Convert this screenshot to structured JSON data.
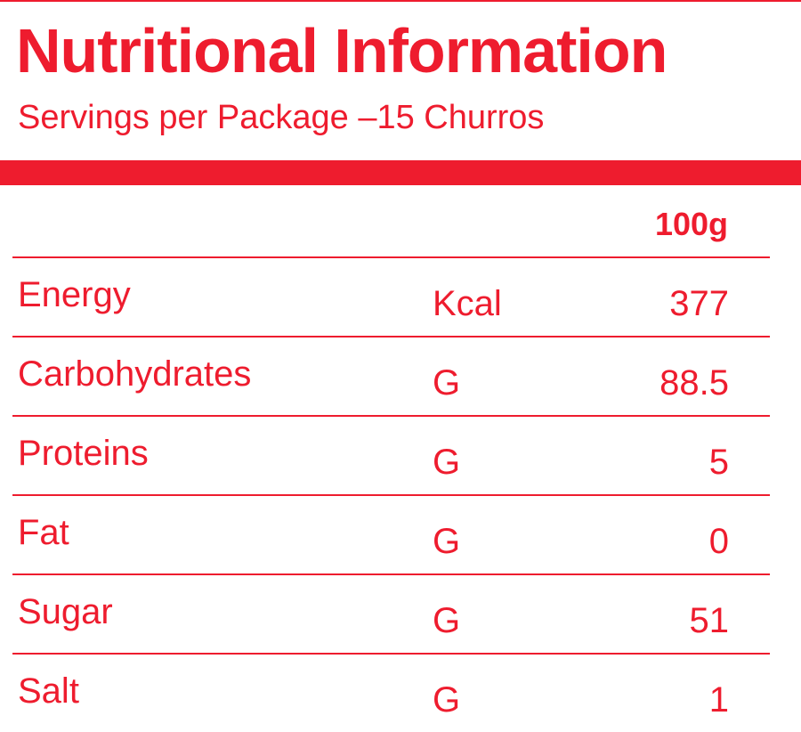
{
  "colors": {
    "accent": "#ee1c2e"
  },
  "header": {
    "title": "Nutritional Information",
    "subtitle": "Servings per Package –15 Churros"
  },
  "table": {
    "column_header": "100g",
    "rows": [
      {
        "name": "Energy",
        "unit": "Kcal",
        "value": "377"
      },
      {
        "name": "Carbohydrates",
        "unit": "G",
        "value": "88.5"
      },
      {
        "name": "Proteins",
        "unit": "G",
        "value": "5"
      },
      {
        "name": "Fat",
        "unit": "G",
        "value": "0"
      },
      {
        "name": "Sugar",
        "unit": "G",
        "value": "51"
      },
      {
        "name": "Salt",
        "unit": "G",
        "value": "1"
      }
    ]
  }
}
